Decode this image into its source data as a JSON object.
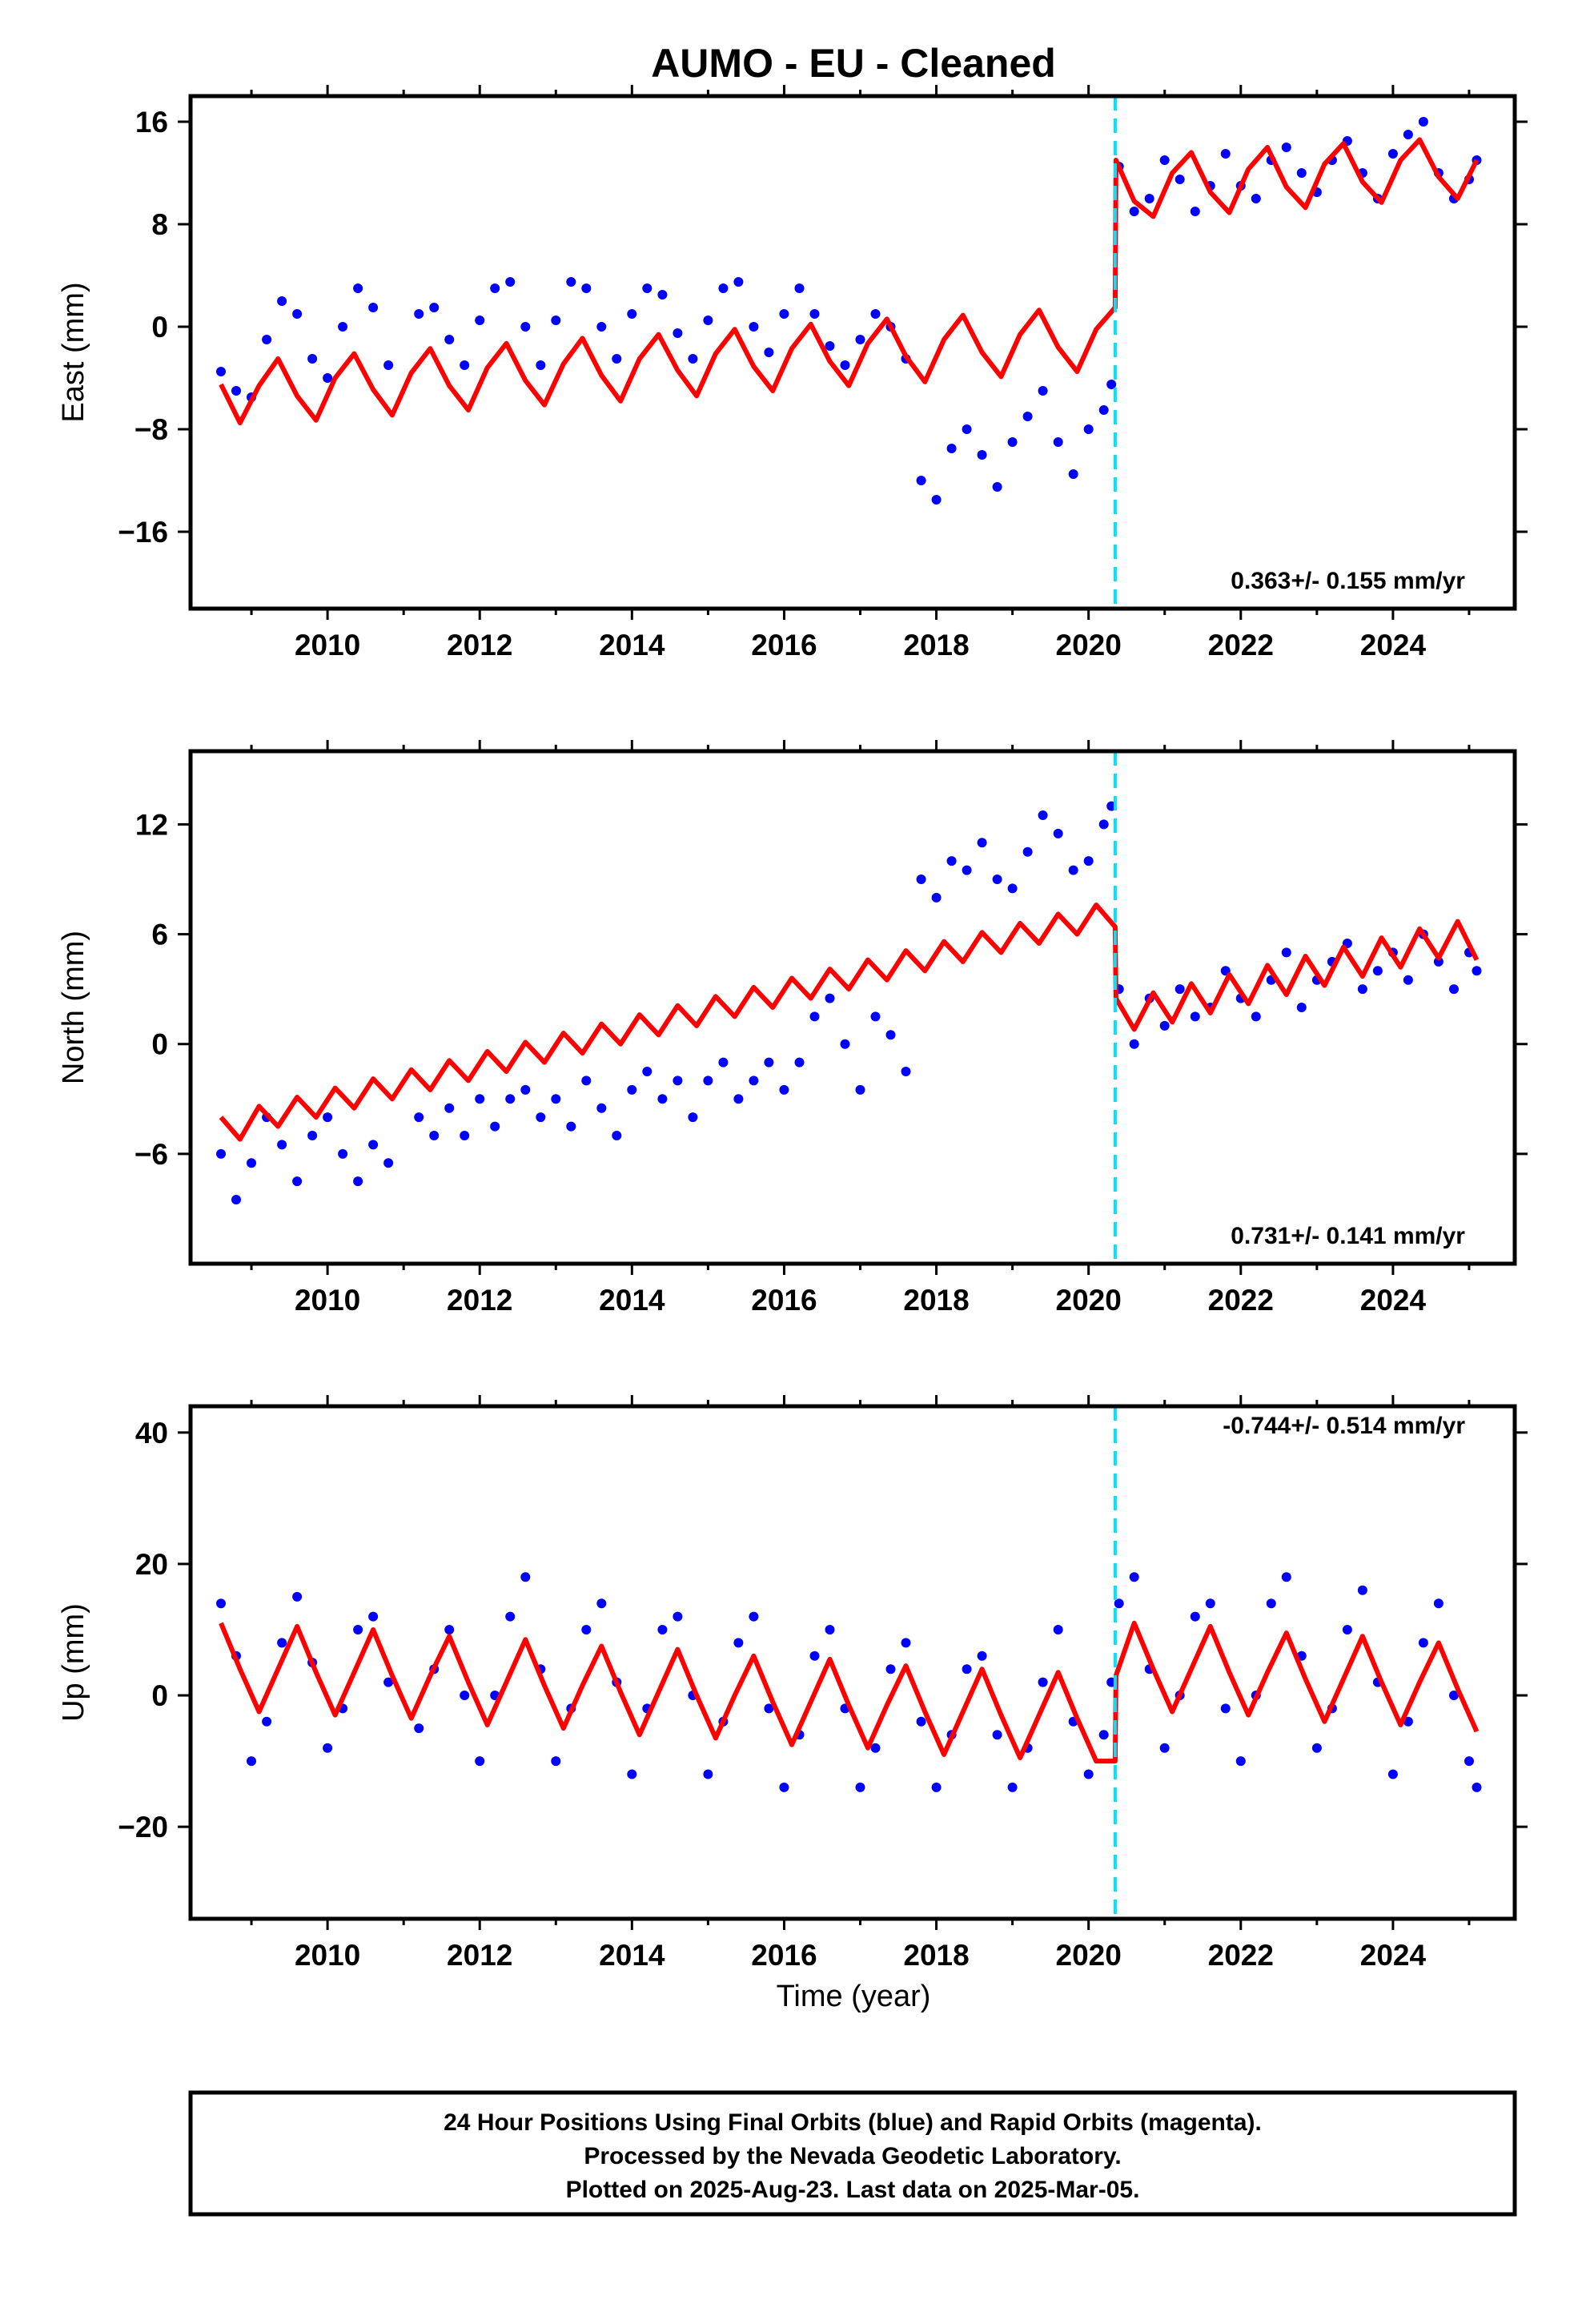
{
  "title": "AUMO  - EU - Cleaned",
  "xlabel": "Time (year)",
  "footer": {
    "line1": "24 Hour Positions Using Final Orbits (blue) and Rapid Orbits (magenta).",
    "line2": "Processed by the Nevada Geodetic Laboratory.",
    "line3": "Plotted on 2025-Aug-23. Last data on 2025-Mar-05."
  },
  "colors": {
    "data": "#0000ff",
    "model": "#ff0000",
    "break": "#00e5ff",
    "frame": "#000000"
  },
  "chart_data": [
    {
      "type": "scatter",
      "ylabel": "East (mm)",
      "rate_text": "0.363+/- 0.155 mm/yr",
      "xlim": [
        2008.2,
        2025.6
      ],
      "ylim": [
        -22,
        18
      ],
      "yticks": [
        -16,
        -8,
        0,
        8,
        16
      ],
      "xticks": [
        2010,
        2012,
        2014,
        2016,
        2018,
        2020,
        2022,
        2024
      ],
      "break_epoch": 2020.35,
      "series": [
        {
          "name": "Final Orbits (blue)",
          "x": [
            2008.6,
            2008.8,
            2009.0,
            2009.2,
            2009.4,
            2009.6,
            2009.8,
            2010.0,
            2010.2,
            2010.4,
            2010.6,
            2010.8,
            2011.2,
            2011.4,
            2011.6,
            2011.8,
            2012.0,
            2012.2,
            2012.4,
            2012.6,
            2012.8,
            2013.0,
            2013.2,
            2013.4,
            2013.6,
            2013.8,
            2014.0,
            2014.2,
            2014.4,
            2014.6,
            2014.8,
            2015.0,
            2015.2,
            2015.4,
            2015.6,
            2015.8,
            2016.0,
            2016.2,
            2016.4,
            2016.6,
            2016.8,
            2017.0,
            2017.2,
            2017.4,
            2017.6,
            2017.8,
            2018.0,
            2018.2,
            2018.4,
            2018.6,
            2018.8,
            2019.0,
            2019.2,
            2019.4,
            2019.6,
            2019.8,
            2020.0,
            2020.2,
            2020.3,
            2020.4,
            2020.6,
            2020.8,
            2021.0,
            2021.2,
            2021.4,
            2021.6,
            2021.8,
            2022.0,
            2022.2,
            2022.4,
            2022.6,
            2022.8,
            2023.0,
            2023.2,
            2023.4,
            2023.6,
            2023.8,
            2024.0,
            2024.2,
            2024.4,
            2024.6,
            2024.8,
            2025.0,
            2025.1
          ],
          "y": [
            -3.5,
            -5.0,
            -5.5,
            -1.0,
            2.0,
            1.0,
            -2.5,
            -4.0,
            0.0,
            3.0,
            1.5,
            -3.0,
            1.0,
            1.5,
            -1.0,
            -3.0,
            0.5,
            3.0,
            3.5,
            0.0,
            -3.0,
            0.5,
            3.5,
            3.0,
            0.0,
            -2.5,
            1.0,
            3.0,
            2.5,
            -0.5,
            -2.5,
            0.5,
            3.0,
            3.5,
            0.0,
            -2.0,
            1.0,
            3.0,
            1.0,
            -1.5,
            -3.0,
            -1.0,
            1.0,
            0.0,
            -2.5,
            -12.0,
            -13.5,
            -9.5,
            -8.0,
            -10.0,
            -12.5,
            -9.0,
            -7.0,
            -5.0,
            -9.0,
            -11.5,
            -8.0,
            -6.5,
            -4.5,
            12.5,
            9.0,
            10.0,
            13.0,
            11.5,
            9.0,
            11.0,
            13.5,
            11.0,
            10.0,
            13.0,
            14.0,
            12.0,
            10.5,
            13.0,
            14.5,
            12.0,
            10.0,
            13.5,
            15.0,
            16.0,
            12.0,
            10.0,
            11.5,
            13.0
          ]
        },
        {
          "name": "Model (red)",
          "x": [
            2008.6,
            2008.85,
            2009.1,
            2009.35,
            2009.6,
            2009.85,
            2010.1,
            2010.35,
            2010.6,
            2010.85,
            2011.1,
            2011.35,
            2011.6,
            2011.85,
            2012.1,
            2012.35,
            2012.6,
            2012.85,
            2013.1,
            2013.35,
            2013.6,
            2013.85,
            2014.1,
            2014.35,
            2014.6,
            2014.85,
            2015.1,
            2015.35,
            2015.6,
            2015.85,
            2016.1,
            2016.35,
            2016.6,
            2016.85,
            2017.1,
            2017.35,
            2017.6,
            2017.85,
            2018.1,
            2018.35,
            2018.6,
            2018.85,
            2019.1,
            2019.35,
            2019.6,
            2019.85,
            2020.1,
            2020.35,
            2020.36,
            2020.6,
            2020.85,
            2021.1,
            2021.35,
            2021.6,
            2021.85,
            2022.1,
            2022.35,
            2022.6,
            2022.85,
            2023.1,
            2023.35,
            2023.6,
            2023.85,
            2024.1,
            2024.35,
            2024.6,
            2024.85,
            2025.1
          ],
          "y": [
            -4.5,
            -7.5,
            -4.6,
            -2.5,
            -5.4,
            -7.3,
            -4.0,
            -2.1,
            -4.9,
            -6.9,
            -3.6,
            -1.7,
            -4.6,
            -6.5,
            -3.2,
            -1.3,
            -4.2,
            -6.1,
            -2.9,
            -0.9,
            -3.8,
            -5.8,
            -2.5,
            -0.6,
            -3.4,
            -5.4,
            -2.1,
            -0.2,
            -3.1,
            -5.0,
            -1.7,
            0.2,
            -2.7,
            -4.6,
            -1.3,
            0.6,
            -2.3,
            -4.3,
            -1.0,
            0.9,
            -2.0,
            -3.9,
            -0.6,
            1.3,
            -1.6,
            -3.5,
            -0.2,
            1.5,
            13.0,
            9.8,
            8.6,
            12.0,
            13.6,
            10.5,
            8.9,
            12.3,
            14.0,
            10.9,
            9.3,
            12.7,
            14.3,
            11.3,
            9.7,
            13.0,
            14.6,
            11.7,
            10.0,
            13.0
          ]
        }
      ]
    },
    {
      "type": "scatter",
      "ylabel": "North (mm)",
      "rate_text": "0.731+/- 0.141 mm/yr",
      "xlim": [
        2008.2,
        2025.6
      ],
      "ylim": [
        -12,
        16
      ],
      "yticks": [
        -6,
        0,
        6,
        12
      ],
      "xticks": [
        2010,
        2012,
        2014,
        2016,
        2018,
        2020,
        2022,
        2024
      ],
      "break_epoch": 2020.35,
      "series": [
        {
          "name": "Final Orbits (blue)",
          "x": [
            2008.6,
            2008.8,
            2009.0,
            2009.2,
            2009.4,
            2009.6,
            2009.8,
            2010.0,
            2010.2,
            2010.4,
            2010.6,
            2010.8,
            2011.2,
            2011.4,
            2011.6,
            2011.8,
            2012.0,
            2012.2,
            2012.4,
            2012.6,
            2012.8,
            2013.0,
            2013.2,
            2013.4,
            2013.6,
            2013.8,
            2014.0,
            2014.2,
            2014.4,
            2014.6,
            2014.8,
            2015.0,
            2015.2,
            2015.4,
            2015.6,
            2015.8,
            2016.0,
            2016.2,
            2016.4,
            2016.6,
            2016.8,
            2017.0,
            2017.2,
            2017.4,
            2017.6,
            2017.8,
            2018.0,
            2018.2,
            2018.4,
            2018.6,
            2018.8,
            2019.0,
            2019.2,
            2019.4,
            2019.6,
            2019.8,
            2020.0,
            2020.2,
            2020.3,
            2020.4,
            2020.6,
            2020.8,
            2021.0,
            2021.2,
            2021.4,
            2021.6,
            2021.8,
            2022.0,
            2022.2,
            2022.4,
            2022.6,
            2022.8,
            2023.0,
            2023.2,
            2023.4,
            2023.6,
            2023.8,
            2024.0,
            2024.2,
            2024.4,
            2024.6,
            2024.8,
            2025.0,
            2025.1
          ],
          "y": [
            -6.0,
            -8.5,
            -6.5,
            -4.0,
            -5.5,
            -7.5,
            -5.0,
            -4.0,
            -6.0,
            -7.5,
            -5.5,
            -6.5,
            -4.0,
            -5.0,
            -3.5,
            -5.0,
            -3.0,
            -4.5,
            -3.0,
            -2.5,
            -4.0,
            -3.0,
            -4.5,
            -2.0,
            -3.5,
            -5.0,
            -2.5,
            -1.5,
            -3.0,
            -2.0,
            -4.0,
            -2.0,
            -1.0,
            -3.0,
            -2.0,
            -1.0,
            -2.5,
            -1.0,
            1.5,
            2.5,
            0.0,
            -2.5,
            1.5,
            0.5,
            -1.5,
            9.0,
            8.0,
            10.0,
            9.5,
            11.0,
            9.0,
            8.5,
            10.5,
            12.5,
            11.5,
            9.5,
            10.0,
            12.0,
            13.0,
            3.0,
            0.0,
            2.5,
            1.0,
            3.0,
            1.5,
            2.0,
            4.0,
            2.5,
            1.5,
            3.5,
            5.0,
            2.0,
            3.5,
            4.5,
            5.5,
            3.0,
            4.0,
            5.0,
            3.5,
            6.0,
            4.5,
            3.0,
            5.0,
            4.0
          ]
        },
        {
          "name": "Model (red)",
          "x": [
            2008.6,
            2008.85,
            2009.1,
            2009.35,
            2009.6,
            2009.85,
            2010.1,
            2010.35,
            2010.6,
            2010.85,
            2011.1,
            2011.35,
            2011.6,
            2011.85,
            2012.1,
            2012.35,
            2012.6,
            2012.85,
            2013.1,
            2013.35,
            2013.6,
            2013.85,
            2014.1,
            2014.35,
            2014.6,
            2014.85,
            2015.1,
            2015.35,
            2015.6,
            2015.85,
            2016.1,
            2016.35,
            2016.6,
            2016.85,
            2017.1,
            2017.35,
            2017.6,
            2017.85,
            2018.1,
            2018.35,
            2018.6,
            2018.85,
            2019.1,
            2019.35,
            2019.6,
            2019.85,
            2020.1,
            2020.35,
            2020.36,
            2020.6,
            2020.85,
            2021.1,
            2021.35,
            2021.6,
            2021.85,
            2022.1,
            2022.35,
            2022.6,
            2022.85,
            2023.1,
            2023.35,
            2023.6,
            2023.85,
            2024.1,
            2024.35,
            2024.6,
            2024.85,
            2025.1
          ],
          "y": [
            -4.0,
            -5.2,
            -3.4,
            -4.5,
            -2.9,
            -4.0,
            -2.4,
            -3.5,
            -1.9,
            -3.0,
            -1.4,
            -2.5,
            -0.9,
            -2.0,
            -0.4,
            -1.5,
            0.1,
            -1.0,
            0.6,
            -0.5,
            1.1,
            0.0,
            1.6,
            0.5,
            2.1,
            1.0,
            2.6,
            1.5,
            3.1,
            2.0,
            3.6,
            2.5,
            4.1,
            3.0,
            4.6,
            3.5,
            5.1,
            4.0,
            5.6,
            4.5,
            6.1,
            5.0,
            6.6,
            5.5,
            7.1,
            6.0,
            7.6,
            6.4,
            2.5,
            0.8,
            2.8,
            1.2,
            3.3,
            1.7,
            3.8,
            2.2,
            4.3,
            2.7,
            4.8,
            3.2,
            5.3,
            3.7,
            5.8,
            4.2,
            6.3,
            4.7,
            6.7,
            4.6
          ]
        }
      ]
    },
    {
      "type": "scatter",
      "ylabel": "Up (mm)",
      "rate_text": "-0.744+/- 0.514 mm/yr",
      "xlim": [
        2008.2,
        2025.6
      ],
      "ylim": [
        -34,
        44
      ],
      "yticks": [
        -20,
        0,
        20,
        40
      ],
      "xticks": [
        2010,
        2012,
        2014,
        2016,
        2018,
        2020,
        2022,
        2024
      ],
      "break_epoch": 2020.35,
      "series": [
        {
          "name": "Final Orbits (blue)",
          "x": [
            2008.6,
            2008.8,
            2009.0,
            2009.2,
            2009.4,
            2009.6,
            2009.8,
            2010.0,
            2010.2,
            2010.4,
            2010.6,
            2010.8,
            2011.2,
            2011.4,
            2011.6,
            2011.8,
            2012.0,
            2012.2,
            2012.4,
            2012.6,
            2012.8,
            2013.0,
            2013.2,
            2013.4,
            2013.6,
            2013.8,
            2014.0,
            2014.2,
            2014.4,
            2014.6,
            2014.8,
            2015.0,
            2015.2,
            2015.4,
            2015.6,
            2015.8,
            2016.0,
            2016.2,
            2016.4,
            2016.6,
            2016.8,
            2017.0,
            2017.2,
            2017.4,
            2017.6,
            2017.8,
            2018.0,
            2018.2,
            2018.4,
            2018.6,
            2018.8,
            2019.0,
            2019.2,
            2019.4,
            2019.6,
            2019.8,
            2020.0,
            2020.2,
            2020.3,
            2020.4,
            2020.6,
            2020.8,
            2021.0,
            2021.2,
            2021.4,
            2021.6,
            2021.8,
            2022.0,
            2022.2,
            2022.4,
            2022.6,
            2022.8,
            2023.0,
            2023.2,
            2023.4,
            2023.6,
            2023.8,
            2024.0,
            2024.2,
            2024.4,
            2024.6,
            2024.8,
            2025.0,
            2025.1
          ],
          "y": [
            14.0,
            6.0,
            -10.0,
            -4.0,
            8.0,
            15.0,
            5.0,
            -8.0,
            -2.0,
            10.0,
            12.0,
            2.0,
            -5.0,
            4.0,
            10.0,
            0.0,
            -10.0,
            0.0,
            12.0,
            18.0,
            4.0,
            -10.0,
            -2.0,
            10.0,
            14.0,
            2.0,
            -12.0,
            -2.0,
            10.0,
            12.0,
            0.0,
            -12.0,
            -4.0,
            8.0,
            12.0,
            -2.0,
            -14.0,
            -6.0,
            6.0,
            10.0,
            -2.0,
            -14.0,
            -8.0,
            4.0,
            8.0,
            -4.0,
            -14.0,
            -6.0,
            4.0,
            6.0,
            -6.0,
            -14.0,
            -8.0,
            2.0,
            10.0,
            -4.0,
            -12.0,
            -6.0,
            2.0,
            14.0,
            18.0,
            4.0,
            -8.0,
            0.0,
            12.0,
            14.0,
            -2.0,
            -10.0,
            0.0,
            14.0,
            18.0,
            6.0,
            -8.0,
            -2.0,
            10.0,
            16.0,
            2.0,
            -12.0,
            -4.0,
            8.0,
            14.0,
            0.0,
            -10.0,
            -14.0
          ]
        },
        {
          "name": "Model (red)",
          "x": [
            2008.6,
            2008.85,
            2009.1,
            2009.35,
            2009.6,
            2009.85,
            2010.1,
            2010.35,
            2010.6,
            2010.85,
            2011.1,
            2011.35,
            2011.6,
            2011.85,
            2012.1,
            2012.35,
            2012.6,
            2012.85,
            2013.1,
            2013.35,
            2013.6,
            2013.85,
            2014.1,
            2014.35,
            2014.6,
            2014.85,
            2015.1,
            2015.35,
            2015.6,
            2015.85,
            2016.1,
            2016.35,
            2016.6,
            2016.85,
            2017.1,
            2017.35,
            2017.6,
            2017.85,
            2018.1,
            2018.35,
            2018.6,
            2018.85,
            2019.1,
            2019.35,
            2019.6,
            2019.85,
            2020.1,
            2020.35,
            2020.36,
            2020.6,
            2020.85,
            2021.1,
            2021.35,
            2021.6,
            2021.85,
            2022.1,
            2022.35,
            2022.6,
            2022.85,
            2023.1,
            2023.35,
            2023.6,
            2023.85,
            2024.1,
            2024.35,
            2024.6,
            2024.85,
            2025.1
          ],
          "y": [
            11.0,
            4.0,
            -2.5,
            4.0,
            10.5,
            3.5,
            -3.0,
            3.5,
            10.0,
            3.0,
            -3.5,
            3.0,
            9.0,
            2.0,
            -4.5,
            2.0,
            8.5,
            1.5,
            -5.0,
            1.5,
            7.5,
            0.5,
            -6.0,
            0.5,
            7.0,
            0.0,
            -6.5,
            0.0,
            6.0,
            -1.0,
            -7.5,
            -1.0,
            5.5,
            -1.5,
            -8.0,
            -1.5,
            4.5,
            -2.5,
            -9.0,
            -2.5,
            4.0,
            -3.0,
            -9.5,
            -3.0,
            3.5,
            -3.5,
            -10.0,
            -10.0,
            3.0,
            11.0,
            4.0,
            -2.5,
            4.0,
            10.5,
            3.5,
            -3.0,
            3.5,
            9.5,
            2.5,
            -4.0,
            2.5,
            9.0,
            2.0,
            -4.5,
            2.0,
            8.0,
            1.0,
            -5.5
          ]
        }
      ]
    }
  ]
}
